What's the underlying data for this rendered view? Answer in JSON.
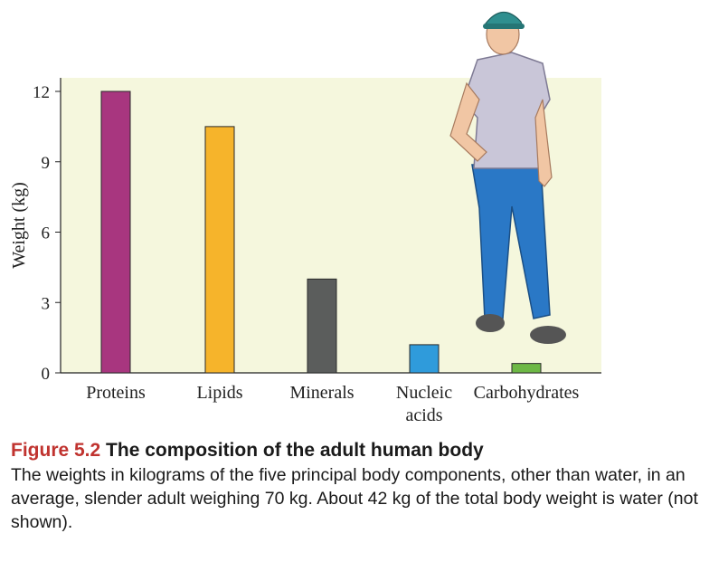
{
  "chart_data": {
    "type": "bar",
    "categories": [
      "Proteins",
      "Lipids",
      "Minerals",
      "Nucleic\nacids",
      "Carbohydrates"
    ],
    "values": [
      12,
      10.5,
      4,
      1.2,
      0.4
    ],
    "colors": [
      "#a8367f",
      "#f6b42b",
      "#5b5d5c",
      "#2f9bdb",
      "#6db845"
    ],
    "ylabel": "Weight (kg)",
    "xlabel": "",
    "ylim": [
      0,
      12
    ],
    "yticks": [
      0,
      3,
      6,
      9,
      12
    ],
    "grid": false
  },
  "caption": {
    "figure_label": "Figure 5.2",
    "figure_title": "The composition of the adult human body",
    "description": "The weights in kilograms of the five principal body components, other than water, in an average, slender adult weighing 70 kg. About 42 kg of the total body weight is water (not shown)."
  },
  "background_color": "#f5f7dd",
  "illustration": "person-illustration"
}
